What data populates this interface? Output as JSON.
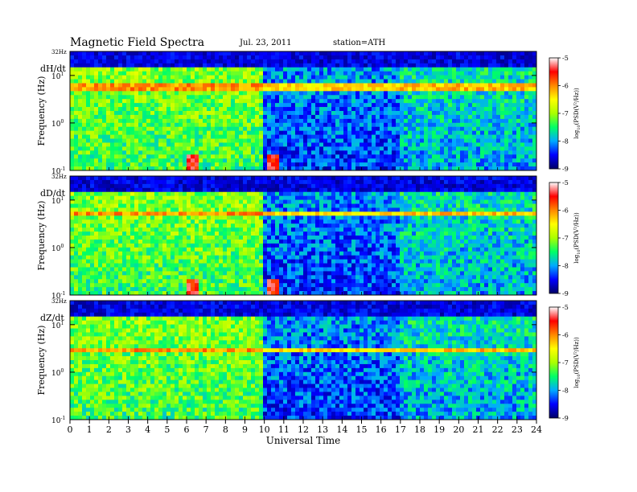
{
  "header": {
    "title": "Magnetic Field Spectra",
    "date": "Jul. 23, 2011",
    "station": "station=ATH"
  },
  "chart_data": {
    "type": "heatmap",
    "xlabel": "Universal Time",
    "x_ticks": [
      "0",
      "1",
      "2",
      "3",
      "4",
      "5",
      "6",
      "7",
      "8",
      "9",
      "10",
      "11",
      "12",
      "13",
      "14",
      "15",
      "16",
      "17",
      "18",
      "19",
      "20",
      "21",
      "22",
      "23",
      "24"
    ],
    "xlim": [
      0,
      24
    ],
    "ylabel": "Frequency (Hz)",
    "y_scale": "log",
    "y_tick_labels": {
      "top": "32Hz",
      "mid_high": "10",
      "mid_low": "10",
      "bottom": "10"
    },
    "y_tick_exponents": {
      "mid_high": "1",
      "mid_low": "0",
      "bottom": "-1"
    },
    "colorbar": {
      "label": "log",
      "label_sub": "10",
      "label_tail": "(PSD(V²/Hz))",
      "ticks": [
        "-5",
        "-6",
        "-7",
        "-8",
        "-9"
      ],
      "range": [
        -9,
        -5
      ],
      "colors": [
        "#000066",
        "#0000ff",
        "#00aaff",
        "#00ff66",
        "#aaff00",
        "#ffff00",
        "#ff8800",
        "#ff0000",
        "#ffffff"
      ]
    },
    "panels": [
      {
        "name": "dH/dt",
        "line_freq_hz": 5.5
      },
      {
        "name": "dD/dt",
        "line_freq_hz": 5.0
      },
      {
        "name": "dZ/dt",
        "line_freq_hz": 3.0
      }
    ]
  }
}
